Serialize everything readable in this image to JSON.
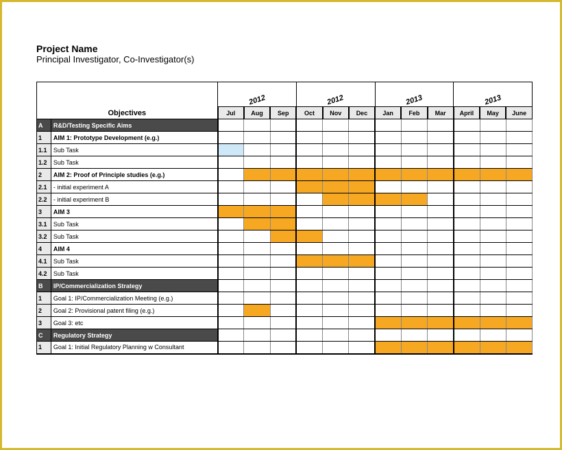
{
  "header": {
    "title": "Project Name",
    "subtitle": "Principal Investigator, Co-Investigator(s)"
  },
  "columns": {
    "objectives_label": "Objectives",
    "years": [
      "2012",
      "2012",
      "2013",
      "2013"
    ],
    "months": [
      "Jul",
      "Aug",
      "Sep",
      "Oct",
      "Nov",
      "Dec",
      "Jan",
      "Feb",
      "Mar",
      "April",
      "May",
      "June"
    ]
  },
  "colors": {
    "bar": "#f7a823",
    "bar_light": "#cfe8f7",
    "section_bg": "#4a4a4a",
    "section_fg": "#ffffff",
    "header_bg": "#e9e9e9",
    "border": "#000000",
    "frame": "#d4b92e"
  },
  "rows": [
    {
      "id": "A",
      "label": "R&D/Testing Specific Aims",
      "type": "section",
      "bars": [
        0,
        0,
        0,
        0,
        0,
        0,
        0,
        0,
        0,
        0,
        0,
        0
      ]
    },
    {
      "id": "1",
      "label": "AIM 1: Prototype Development (e.g.)",
      "type": "aim",
      "bars": [
        0,
        0,
        0,
        0,
        0,
        0,
        0,
        0,
        0,
        0,
        0,
        0
      ]
    },
    {
      "id": "1.1",
      "label": "Sub Task",
      "type": "task",
      "bars": [
        2,
        0,
        0,
        0,
        0,
        0,
        0,
        0,
        0,
        0,
        0,
        0
      ]
    },
    {
      "id": "1.2",
      "label": "Sub Task",
      "type": "task",
      "bars": [
        0,
        0,
        0,
        0,
        0,
        0,
        0,
        0,
        0,
        0,
        0,
        0
      ]
    },
    {
      "id": "2",
      "label": "AIM 2: Proof of Principle studies (e.g.)",
      "type": "aim",
      "bars": [
        0,
        1,
        1,
        1,
        1,
        1,
        1,
        1,
        1,
        1,
        1,
        1
      ]
    },
    {
      "id": "2.1",
      "label": " - initial experiment A",
      "type": "task",
      "bars": [
        0,
        0,
        0,
        1,
        1,
        1,
        0,
        0,
        0,
        0,
        0,
        0
      ]
    },
    {
      "id": "2.2",
      "label": " - initial experiment B",
      "type": "task",
      "bars": [
        0,
        0,
        0,
        0,
        1,
        1,
        1,
        1,
        0,
        0,
        0,
        0
      ]
    },
    {
      "id": "3",
      "label": "AIM 3",
      "type": "aim",
      "bars": [
        1,
        1,
        1,
        0,
        0,
        0,
        0,
        0,
        0,
        0,
        0,
        0
      ]
    },
    {
      "id": "3.1",
      "label": "Sub Task",
      "type": "task",
      "bars": [
        0,
        1,
        1,
        0,
        0,
        0,
        0,
        0,
        0,
        0,
        0,
        0
      ]
    },
    {
      "id": "3.2",
      "label": "Sub Task",
      "type": "task",
      "bars": [
        0,
        0,
        1,
        1,
        0,
        0,
        0,
        0,
        0,
        0,
        0,
        0
      ]
    },
    {
      "id": "4",
      "label": "AIM 4",
      "type": "aim",
      "bars": [
        0,
        0,
        0,
        0,
        0,
        0,
        0,
        0,
        0,
        0,
        0,
        0
      ]
    },
    {
      "id": "4.1",
      "label": "Sub Task",
      "type": "task",
      "bars": [
        0,
        0,
        0,
        1,
        1,
        1,
        0,
        0,
        0,
        0,
        0,
        0
      ]
    },
    {
      "id": "4.2",
      "label": "Sub Task",
      "type": "task",
      "bars": [
        0,
        0,
        0,
        0,
        0,
        0,
        0,
        0,
        0,
        0,
        0,
        0
      ]
    },
    {
      "id": "B",
      "label": "IP/Commercialization Strategy",
      "type": "section",
      "bars": [
        0,
        0,
        0,
        0,
        0,
        0,
        0,
        0,
        0,
        0,
        0,
        0
      ]
    },
    {
      "id": "1",
      "label": "Goal 1: IP/Commercialization Meeting (e.g.)",
      "type": "task",
      "bars": [
        0,
        0,
        0,
        0,
        0,
        0,
        0,
        0,
        0,
        0,
        0,
        0
      ]
    },
    {
      "id": "2",
      "label": "Goal 2: Provisional patent filing (e.g.)",
      "type": "task",
      "bars": [
        0,
        1,
        0,
        0,
        0,
        0,
        0,
        0,
        0,
        0,
        0,
        0
      ]
    },
    {
      "id": "3",
      "label": "Goal 3: etc",
      "type": "task",
      "bars": [
        0,
        0,
        0,
        0,
        0,
        0,
        1,
        1,
        1,
        1,
        1,
        1
      ]
    },
    {
      "id": "C",
      "label": "Regulatory Strategy",
      "type": "section",
      "bars": [
        0,
        0,
        0,
        0,
        0,
        0,
        0,
        0,
        0,
        0,
        0,
        0
      ]
    },
    {
      "id": "1",
      "label": "Goal 1: Initial Regulatory Planning w Consultant",
      "type": "task",
      "bars": [
        0,
        0,
        0,
        0,
        0,
        0,
        1,
        1,
        1,
        1,
        1,
        1
      ]
    }
  ]
}
